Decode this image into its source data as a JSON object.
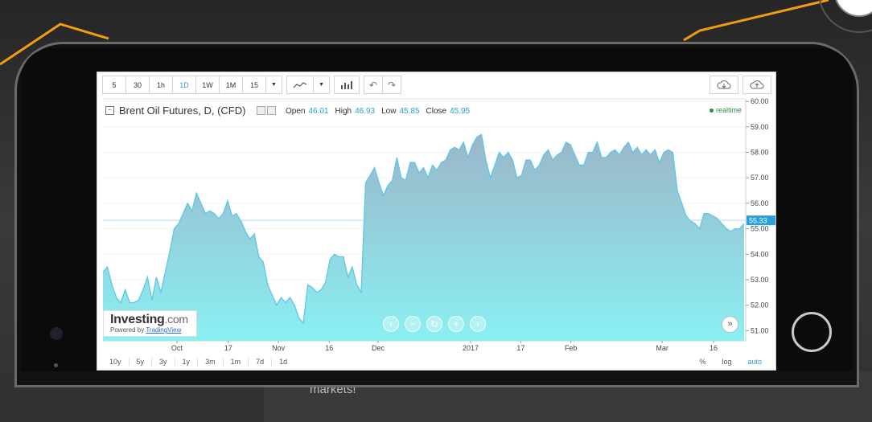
{
  "page": {
    "caption": "markets!"
  },
  "toolbar": {
    "intervals": [
      "5",
      "30",
      "1h",
      "1D",
      "1W",
      "1M",
      "15"
    ],
    "active_interval": "1D"
  },
  "header": {
    "title": "Brent Oil Futures, D, (CFD)",
    "open_label": "Open",
    "open_value": "46.01",
    "high_label": "High",
    "high_value": "46.93",
    "low_label": "Low",
    "low_value": "45.85",
    "close_label": "Close",
    "close_value": "45.95",
    "realtime_label": "realtime"
  },
  "bottom_bar": {
    "ranges": [
      "10y",
      "5y",
      "3y",
      "1y",
      "3m",
      "1m",
      "7d",
      "1d"
    ],
    "pct_label": "%",
    "log_label": "log",
    "auto_label": "auto"
  },
  "logo": {
    "brand": "Investing",
    "suffix": ".com",
    "powered": "Powered by",
    "tv": "TradingView"
  },
  "colors": {
    "accent": "#2a9fd8",
    "area_top": "#9bb6c9",
    "area_bottom": "#8af0f2",
    "line": "#5cc7e8",
    "deco_line": "#f39c12"
  },
  "chart_data": {
    "type": "area",
    "ylim": [
      50.6,
      60.1
    ],
    "yticks": [
      "60.00",
      "59.00",
      "58.00",
      "57.00",
      "56.00",
      "55.00",
      "54.00",
      "53.00",
      "52.00",
      "51.00"
    ],
    "x_tick_labels": [
      "Oct",
      "17",
      "Nov",
      "16",
      "Dec",
      "2017",
      "17",
      "Feb",
      "Mar",
      "16"
    ],
    "last_price_label": "55.33",
    "last_price": 55.33,
    "values": [
      53.3,
      53.5,
      52.8,
      52.3,
      52.1,
      52.6,
      52.1,
      52.1,
      52.2,
      52.6,
      53.1,
      52.2,
      53.1,
      52.5,
      53.3,
      54.1,
      55.0,
      55.2,
      55.6,
      56.0,
      55.7,
      56.4,
      56.0,
      55.6,
      55.7,
      55.6,
      55.4,
      55.6,
      56.1,
      55.5,
      55.6,
      55.3,
      54.9,
      54.6,
      54.8,
      53.9,
      53.7,
      52.8,
      52.4,
      52.0,
      52.3,
      52.1,
      52.3,
      52.0,
      51.5,
      51.3,
      52.8,
      52.7,
      52.5,
      52.6,
      52.9,
      53.8,
      54.0,
      53.9,
      53.9,
      53.1,
      53.5,
      52.8,
      52.5,
      56.8,
      57.1,
      57.4,
      56.8,
      56.3,
      56.7,
      56.9,
      57.8,
      57.0,
      56.9,
      57.6,
      57.6,
      57.2,
      57.4,
      57.0,
      57.5,
      57.3,
      57.6,
      57.7,
      58.1,
      58.2,
      58.1,
      58.4,
      57.8,
      58.3,
      58.6,
      58.7,
      57.7,
      57.0,
      57.5,
      58.0,
      57.8,
      58.0,
      57.7,
      57.0,
      57.1,
      57.7,
      57.7,
      57.3,
      57.5,
      57.9,
      58.1,
      57.7,
      57.9,
      58.0,
      58.4,
      58.3,
      57.9,
      57.5,
      57.5,
      58.0,
      58.0,
      58.4,
      57.8,
      57.8,
      58.0,
      58.1,
      57.9,
      58.2,
      58.4,
      58.0,
      58.2,
      57.9,
      58.1,
      57.9,
      58.1,
      57.6,
      58.0,
      58.1,
      58.0,
      56.5,
      56.0,
      55.5,
      55.3,
      55.2,
      55.0,
      55.6,
      55.6,
      55.5,
      55.4,
      55.2,
      55.0,
      54.9,
      55.0,
      55.0,
      55.2
    ]
  }
}
